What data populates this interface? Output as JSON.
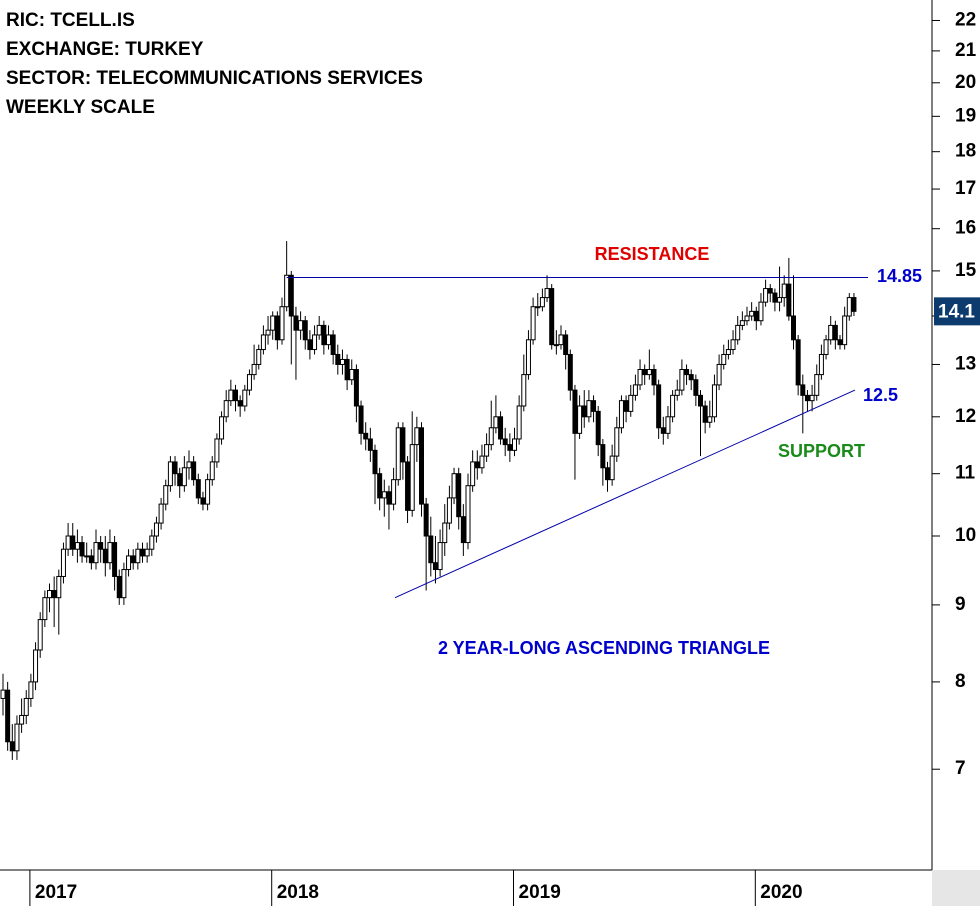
{
  "chart_data": {
    "type": "candlestick",
    "header": [
      "RIC: TCELL.IS",
      "EXCHANGE: TURKEY",
      "SECTOR: TELECOMMUNICATIONS SERVICES",
      "WEEKLY SCALE"
    ],
    "pattern_label": "2 YEAR-LONG ASCENDING TRIANGLE",
    "resistance": {
      "label": "RESISTANCE",
      "value": 14.85,
      "value_label": "14.85",
      "color": "#0000aa",
      "label_color": "#e00000"
    },
    "support": {
      "label": "SUPPORT",
      "value": 12.5,
      "start_value": 9.1,
      "color": "#0000aa",
      "label_color": "#1a8a1a"
    },
    "log": true,
    "ylim": [
      6,
      22.7
    ],
    "yticks": [
      7,
      8,
      9,
      10,
      11,
      12,
      13,
      14,
      15,
      16,
      17,
      18,
      19,
      20,
      21,
      22
    ],
    "up_color": "#ffffff",
    "down_color": "#000000",
    "price_tag_color": "#0d3b6e",
    "categories": [
      null,
      null,
      null,
      null,
      null,
      null,
      "2017",
      null,
      null,
      null,
      null,
      null,
      null,
      null,
      null,
      null,
      null,
      null,
      null,
      null,
      null,
      null,
      null,
      null,
      null,
      null,
      null,
      null,
      null,
      null,
      null,
      null,
      null,
      null,
      null,
      null,
      null,
      null,
      null,
      null,
      null,
      null,
      null,
      null,
      null,
      null,
      null,
      null,
      null,
      null,
      null,
      null,
      null,
      null,
      null,
      null,
      null,
      null,
      "2018",
      null,
      null,
      null,
      null,
      null,
      null,
      null,
      null,
      null,
      null,
      null,
      null,
      null,
      null,
      null,
      null,
      null,
      null,
      null,
      null,
      null,
      null,
      null,
      null,
      null,
      null,
      null,
      null,
      null,
      null,
      null,
      null,
      null,
      null,
      null,
      null,
      null,
      null,
      null,
      null,
      null,
      null,
      null,
      null,
      null,
      null,
      null,
      null,
      null,
      null,
      null,
      "2019",
      null,
      null,
      null,
      null,
      null,
      null,
      null,
      null,
      null,
      null,
      null,
      null,
      null,
      null,
      null,
      null,
      null,
      null,
      null,
      null,
      null,
      null,
      null,
      null,
      null,
      null,
      null,
      null,
      null,
      null,
      null,
      null,
      null,
      null,
      null,
      null,
      null,
      null,
      null,
      null,
      null,
      null,
      null,
      null,
      null,
      null,
      null,
      null,
      null,
      null,
      null,
      "2020",
      null,
      null,
      null,
      null,
      null,
      null,
      null,
      null,
      null,
      null,
      null,
      null,
      null,
      null,
      null,
      null,
      null,
      null,
      null,
      null,
      null
    ],
    "ohlc": [
      [
        7.8,
        8.1,
        7.6,
        7.9
      ],
      [
        7.9,
        8.0,
        7.2,
        7.3
      ],
      [
        7.3,
        7.5,
        7.1,
        7.2
      ],
      [
        7.2,
        7.6,
        7.1,
        7.5
      ],
      [
        7.5,
        7.8,
        7.4,
        7.6
      ],
      [
        7.6,
        7.9,
        7.5,
        7.8
      ],
      [
        7.8,
        8.1,
        7.7,
        8.0
      ],
      [
        8.0,
        8.5,
        7.9,
        8.4
      ],
      [
        8.4,
        8.9,
        8.3,
        8.8
      ],
      [
        8.8,
        9.2,
        8.7,
        9.1
      ],
      [
        9.1,
        9.3,
        8.9,
        9.2
      ],
      [
        9.2,
        9.4,
        8.7,
        9.1
      ],
      [
        9.1,
        9.5,
        8.6,
        9.4
      ],
      [
        9.4,
        9.9,
        9.3,
        9.8
      ],
      [
        9.8,
        10.2,
        9.7,
        10.0
      ],
      [
        10.0,
        10.2,
        9.7,
        9.8
      ],
      [
        9.8,
        10.1,
        9.6,
        9.9
      ],
      [
        9.9,
        10.0,
        9.6,
        9.7
      ],
      [
        9.7,
        9.9,
        9.6,
        9.7
      ],
      [
        9.7,
        9.8,
        9.5,
        9.6
      ],
      [
        9.6,
        10.1,
        9.5,
        9.9
      ],
      [
        9.9,
        10.0,
        9.6,
        9.8
      ],
      [
        9.8,
        10.0,
        9.4,
        9.6
      ],
      [
        9.6,
        10.1,
        9.5,
        9.9
      ],
      [
        9.9,
        10.0,
        9.2,
        9.4
      ],
      [
        9.4,
        9.5,
        9.0,
        9.1
      ],
      [
        9.1,
        9.6,
        9.0,
        9.5
      ],
      [
        9.5,
        9.8,
        9.4,
        9.7
      ],
      [
        9.7,
        9.8,
        9.5,
        9.6
      ],
      [
        9.6,
        9.9,
        9.5,
        9.8
      ],
      [
        9.8,
        9.9,
        9.6,
        9.7
      ],
      [
        9.7,
        9.9,
        9.6,
        9.8
      ],
      [
        9.8,
        10.1,
        9.7,
        10.0
      ],
      [
        10.0,
        10.3,
        9.9,
        10.2
      ],
      [
        10.2,
        10.6,
        10.1,
        10.5
      ],
      [
        10.5,
        10.9,
        10.4,
        10.8
      ],
      [
        10.8,
        11.3,
        10.7,
        11.2
      ],
      [
        11.2,
        11.3,
        10.8,
        11.0
      ],
      [
        11.0,
        11.1,
        10.6,
        10.8
      ],
      [
        10.8,
        11.3,
        10.7,
        11.1
      ],
      [
        11.1,
        11.4,
        10.9,
        11.2
      ],
      [
        11.2,
        11.3,
        10.8,
        10.9
      ],
      [
        10.9,
        11.0,
        10.5,
        10.6
      ],
      [
        10.6,
        10.7,
        10.4,
        10.5
      ],
      [
        10.5,
        11.0,
        10.4,
        10.9
      ],
      [
        10.9,
        11.3,
        10.8,
        11.2
      ],
      [
        11.2,
        11.7,
        11.1,
        11.6
      ],
      [
        11.6,
        12.1,
        11.5,
        12.0
      ],
      [
        12.0,
        12.5,
        11.9,
        12.3
      ],
      [
        12.3,
        12.7,
        12.2,
        12.5
      ],
      [
        12.5,
        12.6,
        12.1,
        12.3
      ],
      [
        12.3,
        12.4,
        12.0,
        12.2
      ],
      [
        12.2,
        12.6,
        12.1,
        12.5
      ],
      [
        12.5,
        12.9,
        12.4,
        12.8
      ],
      [
        12.8,
        13.4,
        12.7,
        13.0
      ],
      [
        13.0,
        13.4,
        12.9,
        13.3
      ],
      [
        13.3,
        13.8,
        13.2,
        13.6
      ],
      [
        13.6,
        14.0,
        13.4,
        13.7
      ],
      [
        13.7,
        14.1,
        13.5,
        14.0
      ],
      [
        14.0,
        14.1,
        13.3,
        13.5
      ],
      [
        13.5,
        14.4,
        13.4,
        14.2
      ],
      [
        14.2,
        15.7,
        14.1,
        14.9
      ],
      [
        14.9,
        15.0,
        13.0,
        14.0
      ],
      [
        14.0,
        14.2,
        12.7,
        13.7
      ],
      [
        13.7,
        14.1,
        13.5,
        13.9
      ],
      [
        13.9,
        14.0,
        13.3,
        13.5
      ],
      [
        13.5,
        13.7,
        13.1,
        13.3
      ],
      [
        13.3,
        13.8,
        13.2,
        13.6
      ],
      [
        13.6,
        14.0,
        13.5,
        13.8
      ],
      [
        13.8,
        13.9,
        13.2,
        13.4
      ],
      [
        13.4,
        13.8,
        13.3,
        13.6
      ],
      [
        13.6,
        13.7,
        13.0,
        13.2
      ],
      [
        13.2,
        13.4,
        12.8,
        13.0
      ],
      [
        13.0,
        13.3,
        12.8,
        13.1
      ],
      [
        13.1,
        13.2,
        12.5,
        12.7
      ],
      [
        12.7,
        13.1,
        12.6,
        12.9
      ],
      [
        12.9,
        13.0,
        11.9,
        12.2
      ],
      [
        12.2,
        12.3,
        11.5,
        11.7
      ],
      [
        11.7,
        11.9,
        11.4,
        11.6
      ],
      [
        11.6,
        11.8,
        11.2,
        11.4
      ],
      [
        11.4,
        11.5,
        10.5,
        11.0
      ],
      [
        11.0,
        11.1,
        10.4,
        10.6
      ],
      [
        10.6,
        10.9,
        10.3,
        10.7
      ],
      [
        10.7,
        10.8,
        10.1,
        10.5
      ],
      [
        10.5,
        11.1,
        10.4,
        10.9
      ],
      [
        10.9,
        11.9,
        10.8,
        11.8
      ],
      [
        11.8,
        11.9,
        10.9,
        11.2
      ],
      [
        11.2,
        11.3,
        10.2,
        10.4
      ],
      [
        10.4,
        12.1,
        10.3,
        11.5
      ],
      [
        11.5,
        12.0,
        11.2,
        11.8
      ],
      [
        11.8,
        11.9,
        10.3,
        10.5
      ],
      [
        10.5,
        10.6,
        9.2,
        10.0
      ],
      [
        10.0,
        10.3,
        9.4,
        9.6
      ],
      [
        9.6,
        10.0,
        9.3,
        9.5
      ],
      [
        9.5,
        10.1,
        9.4,
        9.9
      ],
      [
        9.9,
        10.5,
        9.7,
        10.2
      ],
      [
        10.2,
        10.8,
        10.1,
        10.6
      ],
      [
        10.6,
        11.1,
        10.5,
        11.0
      ],
      [
        11.0,
        11.1,
        10.1,
        10.3
      ],
      [
        10.3,
        10.5,
        9.7,
        9.9
      ],
      [
        9.9,
        11.0,
        9.8,
        10.8
      ],
      [
        10.8,
        11.4,
        10.7,
        11.2
      ],
      [
        11.2,
        11.4,
        10.9,
        11.1
      ],
      [
        11.1,
        11.5,
        11.0,
        11.3
      ],
      [
        11.3,
        11.7,
        11.2,
        11.5
      ],
      [
        11.5,
        12.3,
        11.4,
        11.8
      ],
      [
        11.8,
        12.4,
        11.7,
        12.0
      ],
      [
        12.0,
        12.1,
        11.5,
        11.6
      ],
      [
        11.6,
        11.8,
        11.3,
        11.5
      ],
      [
        11.5,
        11.7,
        11.2,
        11.4
      ],
      [
        11.4,
        11.8,
        11.3,
        11.6
      ],
      [
        11.6,
        12.4,
        11.5,
        12.2
      ],
      [
        12.2,
        13.2,
        12.1,
        12.8
      ],
      [
        12.8,
        13.7,
        12.7,
        13.5
      ],
      [
        13.5,
        14.4,
        13.4,
        14.2
      ],
      [
        14.2,
        14.5,
        14.0,
        14.2
      ],
      [
        14.2,
        14.6,
        14.1,
        14.4
      ],
      [
        14.4,
        14.9,
        14.3,
        14.6
      ],
      [
        14.6,
        14.7,
        13.3,
        13.4
      ],
      [
        13.4,
        13.7,
        13.2,
        13.4
      ],
      [
        13.4,
        13.8,
        13.3,
        13.6
      ],
      [
        13.6,
        13.7,
        12.9,
        13.2
      ],
      [
        13.2,
        13.3,
        12.3,
        12.5
      ],
      [
        12.5,
        12.6,
        10.9,
        11.7
      ],
      [
        11.7,
        12.4,
        11.6,
        12.2
      ],
      [
        12.2,
        12.5,
        11.8,
        12.0
      ],
      [
        12.0,
        12.5,
        11.9,
        12.3
      ],
      [
        12.3,
        12.4,
        11.9,
        12.1
      ],
      [
        12.1,
        12.2,
        11.3,
        11.5
      ],
      [
        11.5,
        11.6,
        10.8,
        11.1
      ],
      [
        11.1,
        11.2,
        10.7,
        10.9
      ],
      [
        10.9,
        11.5,
        10.8,
        11.3
      ],
      [
        11.3,
        12.0,
        11.2,
        11.8
      ],
      [
        11.8,
        12.4,
        11.7,
        12.3
      ],
      [
        12.3,
        12.4,
        11.9,
        12.1
      ],
      [
        12.1,
        12.6,
        12.0,
        12.4
      ],
      [
        12.4,
        12.8,
        12.3,
        12.6
      ],
      [
        12.6,
        13.1,
        12.5,
        12.9
      ],
      [
        12.9,
        13.0,
        12.6,
        12.8
      ],
      [
        12.8,
        13.3,
        12.7,
        12.9
      ],
      [
        12.9,
        13.0,
        12.4,
        12.6
      ],
      [
        12.6,
        12.7,
        11.6,
        11.8
      ],
      [
        11.8,
        12.0,
        11.5,
        11.7
      ],
      [
        11.7,
        12.2,
        11.6,
        12.0
      ],
      [
        12.0,
        12.5,
        11.9,
        12.4
      ],
      [
        12.4,
        12.7,
        12.3,
        12.5
      ],
      [
        12.5,
        13.1,
        12.4,
        12.9
      ],
      [
        12.9,
        13.0,
        12.6,
        12.8
      ],
      [
        12.8,
        12.9,
        12.5,
        12.7
      ],
      [
        12.7,
        12.8,
        12.2,
        12.4
      ],
      [
        12.4,
        12.5,
        11.3,
        12.2
      ],
      [
        12.2,
        12.3,
        11.7,
        11.9
      ],
      [
        11.9,
        12.3,
        11.8,
        12.0
      ],
      [
        12.0,
        12.8,
        11.9,
        12.6
      ],
      [
        12.6,
        13.2,
        12.5,
        13.0
      ],
      [
        13.0,
        13.4,
        12.9,
        13.2
      ],
      [
        13.2,
        13.5,
        13.1,
        13.3
      ],
      [
        13.3,
        13.7,
        13.2,
        13.5
      ],
      [
        13.5,
        14.0,
        13.4,
        13.8
      ],
      [
        13.8,
        14.1,
        13.7,
        13.9
      ],
      [
        13.9,
        14.2,
        13.8,
        14.0
      ],
      [
        14.0,
        14.3,
        13.9,
        14.1
      ],
      [
        14.1,
        14.2,
        13.7,
        13.9
      ],
      [
        13.9,
        14.5,
        13.8,
        14.3
      ],
      [
        14.3,
        14.8,
        14.2,
        14.6
      ],
      [
        14.6,
        14.7,
        14.3,
        14.5
      ],
      [
        14.5,
        14.6,
        14.1,
        14.3
      ],
      [
        14.3,
        15.1,
        14.1,
        14.4
      ],
      [
        14.4,
        14.9,
        14.2,
        14.7
      ],
      [
        14.7,
        15.3,
        13.9,
        14.0
      ],
      [
        14.0,
        14.9,
        13.3,
        13.5
      ],
      [
        13.5,
        13.6,
        12.4,
        12.6
      ],
      [
        12.6,
        12.8,
        11.7,
        12.4
      ],
      [
        12.4,
        12.5,
        12.1,
        12.3
      ],
      [
        12.3,
        12.6,
        12.1,
        12.4
      ],
      [
        12.4,
        13.0,
        12.3,
        12.8
      ],
      [
        12.8,
        13.4,
        12.7,
        13.2
      ],
      [
        13.2,
        13.6,
        13.1,
        13.5
      ],
      [
        13.5,
        14.0,
        13.4,
        13.8
      ],
      [
        13.8,
        13.9,
        13.3,
        13.5
      ],
      [
        13.5,
        13.6,
        13.3,
        13.4
      ],
      [
        13.4,
        14.2,
        13.3,
        14.0
      ],
      [
        14.0,
        14.5,
        13.9,
        14.4
      ],
      [
        14.4,
        14.5,
        14.0,
        14.1
      ]
    ]
  }
}
